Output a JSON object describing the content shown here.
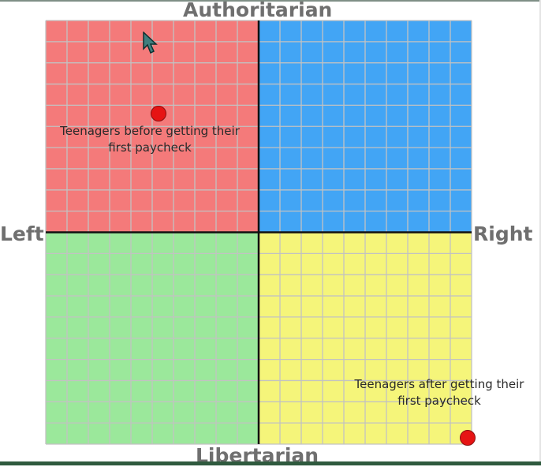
{
  "axes": {
    "top": "Authoritarian",
    "bottom": "Libertarian",
    "left": "Left",
    "right": "Right"
  },
  "quadrant_colors": {
    "authoritarian_left": "#f47a7a",
    "authoritarian_right": "#42a5f5",
    "libertarian_left": "#9be89b",
    "libertarian_right": "#f5f57a"
  },
  "annotations": {
    "before": "Teenagers before getting their first paycheck",
    "after": "Teenagers after getting their first paycheck"
  },
  "markers": {
    "color": "#e61414",
    "icon": "cursor-arrow-icon"
  }
}
